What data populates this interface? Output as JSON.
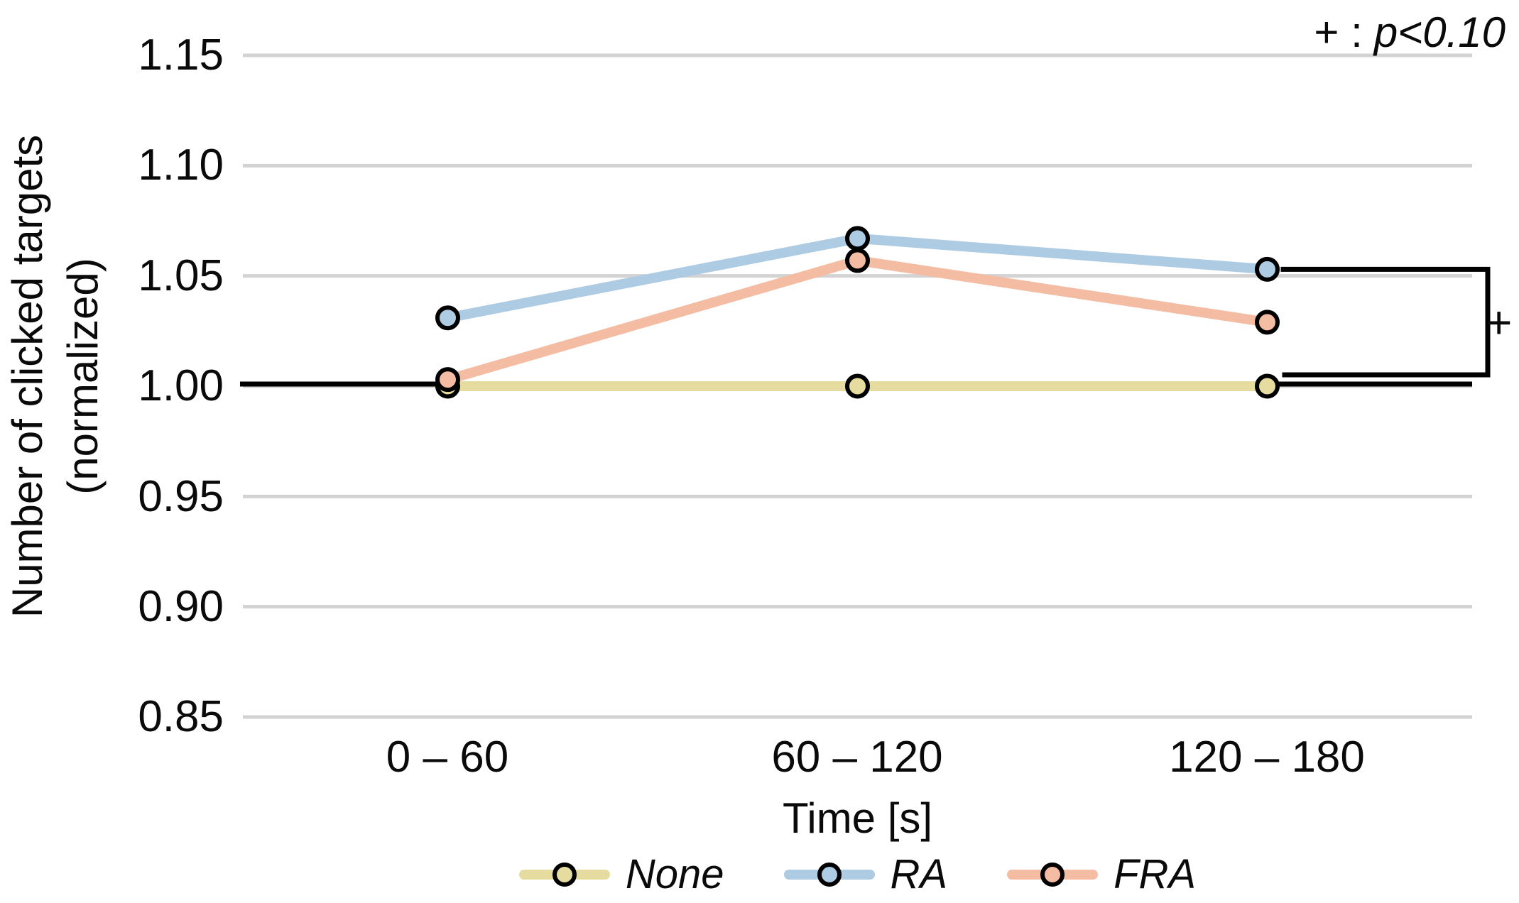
{
  "figure": {
    "significance_note": {
      "prefix": "+ :",
      "pvalue": "p<0.10"
    },
    "bracket_label": "+"
  },
  "chart_data": {
    "type": "line",
    "title": "",
    "xlabel": "Time [s]",
    "ylabel_line1": "Number of clicked targets",
    "ylabel_line2": "(normalized)",
    "categories": [
      "0 – 60",
      "60 – 120",
      "120 – 180"
    ],
    "series": [
      {
        "name": "None",
        "color": "#e6dc9f",
        "values": [
          1.0,
          1.0,
          1.0
        ]
      },
      {
        "name": "RA",
        "color": "#aecbe4",
        "values": [
          1.031,
          1.067,
          1.053
        ]
      },
      {
        "name": "FRA",
        "color": "#f3bca3",
        "values": [
          1.003,
          1.057,
          1.029
        ]
      }
    ],
    "ylim": [
      0.85,
      1.15
    ],
    "y_ticks": [
      1.15,
      1.1,
      1.05,
      1.0,
      0.95,
      0.9,
      0.85
    ],
    "y_tick_labels": [
      "1.15",
      "1.10",
      "1.05",
      "1.00",
      "0.95",
      "0.90",
      "0.85"
    ],
    "grid": "horizontal-only",
    "gridline_color": "#d3d3d3",
    "baseline_value": 1.0,
    "significance": {
      "between": [
        "RA",
        "None"
      ],
      "at_category": "120 – 180",
      "label": "+",
      "note": "p<0.10"
    },
    "legend_position": "bottom",
    "legend": [
      "None",
      "RA",
      "FRA"
    ]
  }
}
